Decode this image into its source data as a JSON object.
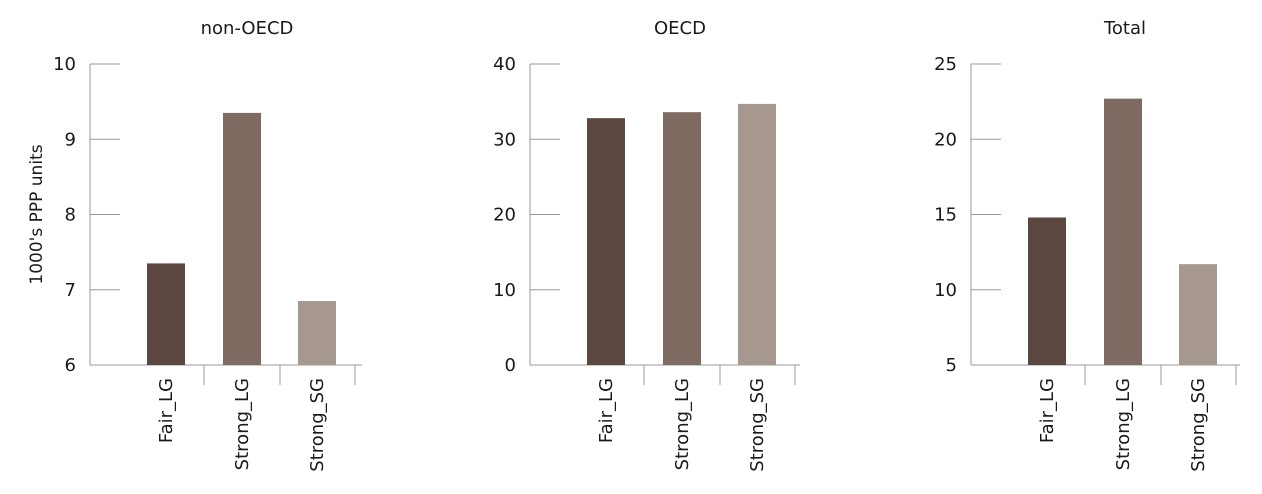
{
  "chart_data": [
    {
      "type": "bar",
      "title": "non-OECD",
      "ylabel": "1000's PPP units",
      "categories": [
        "Fair_LG",
        "Strong_LG",
        "Strong_SG"
      ],
      "values": [
        7.35,
        9.35,
        6.85
      ],
      "ylim": [
        6,
        10
      ],
      "yticks": [
        "6",
        "7",
        "8",
        "9",
        "10"
      ],
      "grid": false
    },
    {
      "type": "bar",
      "title": "OECD",
      "ylabel": "",
      "categories": [
        "Fair_LG",
        "Strong_LG",
        "Strong_SG"
      ],
      "values": [
        32.8,
        33.6,
        34.7
      ],
      "ylim": [
        0,
        40
      ],
      "yticks": [
        "0",
        "10",
        "20",
        "30",
        "40"
      ],
      "grid": false
    },
    {
      "type": "bar",
      "title": "Total",
      "ylabel": "",
      "categories": [
        "Fair_LG",
        "Strong_LG",
        "Strong_SG"
      ],
      "values": [
        14.8,
        22.7,
        11.7
      ],
      "ylim": [
        5,
        25
      ],
      "yticks": [
        "5",
        "10",
        "15",
        "20",
        "25"
      ],
      "grid": false
    }
  ],
  "colors": {
    "bars": [
      "#5c4740",
      "#7f6b62",
      "#a6988f"
    ],
    "axis": "#9a9a9a"
  }
}
